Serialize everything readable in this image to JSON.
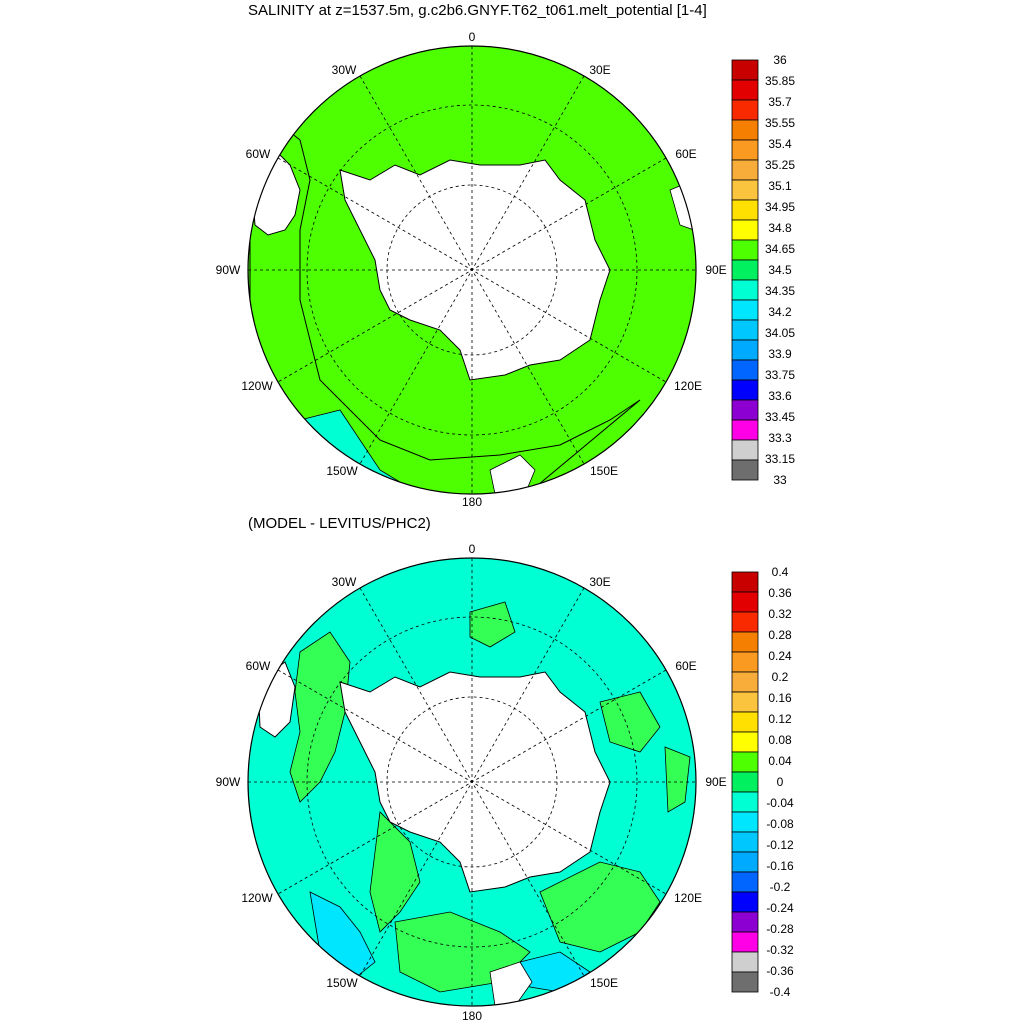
{
  "panels": [
    {
      "title": "SALINITY at z=1537.5m, g.c2b6.GNYF.T62_t061.melt_potential [1-4]",
      "longitude_labels": [
        "0",
        "30E",
        "60E",
        "90E",
        "120E",
        "150E",
        "180",
        "150W",
        "120W",
        "90W",
        "60W",
        "30W"
      ],
      "colorbar": {
        "labels": [
          "36",
          "35.85",
          "35.7",
          "35.55",
          "35.4",
          "35.25",
          "35.1",
          "34.95",
          "34.8",
          "34.65",
          "34.5",
          "34.35",
          "34.2",
          "34.05",
          "33.9",
          "33.75",
          "33.6",
          "33.45",
          "33.3",
          "33.15",
          "33"
        ],
        "colors": [
          "#c80000",
          "#e20000",
          "#fa2a00",
          "#f57f00",
          "#fa9a20",
          "#f8ad3a",
          "#fbc43e",
          "#ffe000",
          "#ffff00",
          "#4dff00",
          "#00f060",
          "#00ffd2",
          "#00e6ff",
          "#00c8ff",
          "#00aaff",
          "#0066ff",
          "#0000ff",
          "#8c00d2",
          "#ff00e6",
          "#cfcfcf",
          "#6e6e6e"
        ]
      },
      "ocean_color": "#4dff00",
      "secondary_color": "#00ffd2"
    },
    {
      "title": "(MODEL - LEVITUS/PHC2)",
      "longitude_labels": [
        "0",
        "30E",
        "60E",
        "90E",
        "120E",
        "150E",
        "180",
        "150W",
        "120W",
        "90W",
        "60W",
        "30W"
      ],
      "colorbar": {
        "labels": [
          "0.4",
          "0.36",
          "0.32",
          "0.28",
          "0.24",
          "0.2",
          "0.16",
          "0.12",
          "0.08",
          "0.04",
          "0",
          "-0.04",
          "-0.08",
          "-0.12",
          "-0.16",
          "-0.2",
          "-0.24",
          "-0.28",
          "-0.32",
          "-0.36",
          "-0.4"
        ],
        "colors": [
          "#c80000",
          "#e20000",
          "#fa2a00",
          "#f57f00",
          "#fa9a20",
          "#f8ad3a",
          "#fbc43e",
          "#ffe000",
          "#ffff00",
          "#4dff00",
          "#00f060",
          "#00ffd2",
          "#00e6ff",
          "#00c8ff",
          "#00aaff",
          "#0066ff",
          "#0000ff",
          "#8c00d2",
          "#ff00e6",
          "#cfcfcf",
          "#6e6e6e"
        ]
      },
      "ocean_color": "#00ffd2",
      "secondary_color": "#33ff55"
    }
  ]
}
